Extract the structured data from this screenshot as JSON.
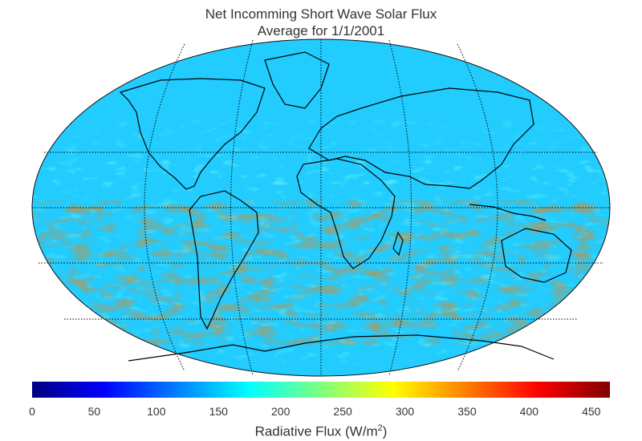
{
  "title": "Net Incomming Short Wave Solar Flux",
  "subtitle": "Average for 1/1/2001",
  "colorbar": {
    "ticks": [
      "0",
      "50",
      "100",
      "150",
      "200",
      "250",
      "300",
      "350",
      "400",
      "450"
    ],
    "label_prefix": "Radiative Flux (W/m",
    "label_exponent": "2",
    "label_suffix": ")",
    "range": [
      0,
      465
    ],
    "colormap": "jet"
  },
  "map": {
    "projection": "robinson",
    "graticule": "dotted",
    "gridline_color": "#000000"
  }
}
